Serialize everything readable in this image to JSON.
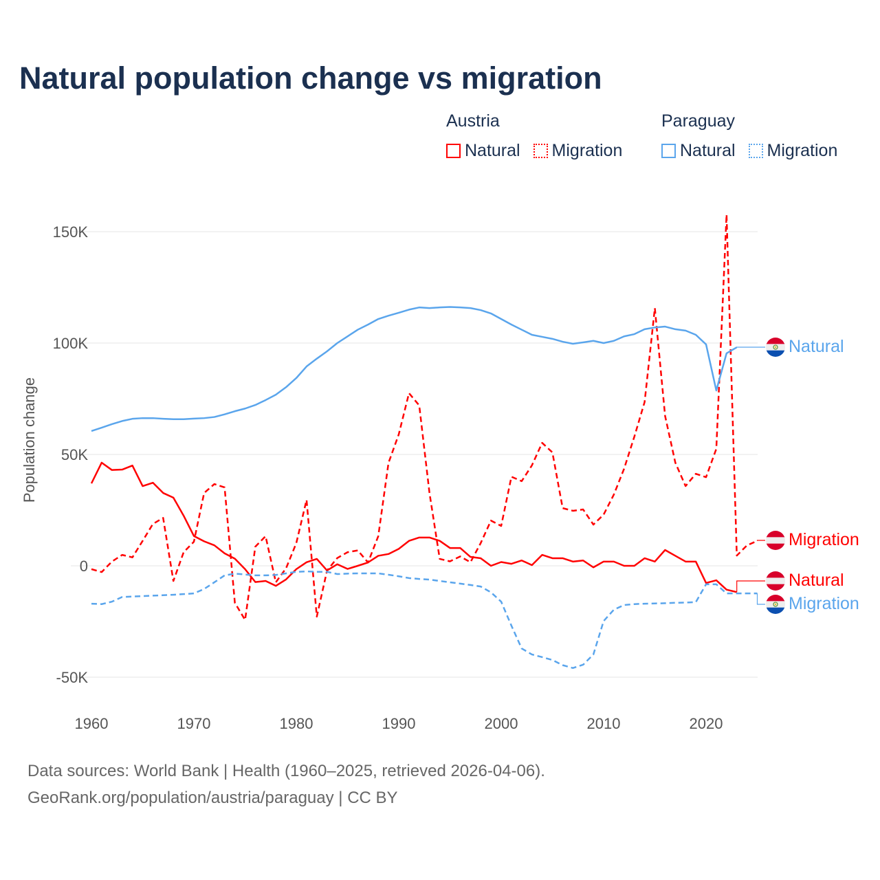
{
  "title": "Natural population change vs migration",
  "legend": {
    "groups": [
      {
        "name": "Austria",
        "items": [
          {
            "label": "Natural",
            "style": "solid",
            "color": "#ff0000"
          },
          {
            "label": "Migration",
            "style": "dotted",
            "color": "#ff0000"
          }
        ]
      },
      {
        "name": "Paraguay",
        "items": [
          {
            "label": "Natural",
            "style": "solid",
            "color": "#5aa5ec"
          },
          {
            "label": "Migration",
            "style": "dotted",
            "color": "#5aa5ec"
          }
        ]
      }
    ]
  },
  "footer": {
    "line1": "Data sources: World Bank | Health (1960–2025, retrieved 2026-04-06).",
    "line2": "GeoRank.org/population/austria/paraguay | CC BY"
  },
  "end_labels": {
    "paraguay_natural": "Natural",
    "austria_migration": "Migration",
    "austria_natural": "Natural",
    "paraguay_migration": "Migration"
  },
  "chart_data": {
    "type": "line",
    "title": "Natural population change vs migration",
    "xlabel": "",
    "ylabel": "Population change",
    "xlim": [
      1960,
      2025
    ],
    "ylim": [
      -50000,
      150000
    ],
    "grid": true,
    "x_ticks": [
      1960,
      1970,
      1980,
      1990,
      2000,
      2010,
      2020
    ],
    "x_tick_labels": [
      "1960",
      "1970",
      "1980",
      "1990",
      "2000",
      "2010",
      "2020"
    ],
    "y_ticks": [
      -50000,
      0,
      50000,
      100000,
      150000
    ],
    "y_tick_labels": [
      "-50K",
      "0",
      "50K",
      "100K",
      "150K"
    ],
    "legend_position": "top-right",
    "series": [
      {
        "name": "Austria Natural",
        "color": "#ff0000",
        "dash": false,
        "start_year": 1960,
        "values": [
          37000,
          46300,
          43000,
          43200,
          45000,
          35800,
          37300,
          32700,
          30600,
          22500,
          13400,
          11000,
          9200,
          5600,
          3200,
          -1500,
          -7300,
          -6800,
          -9000,
          -6100,
          -1500,
          1600,
          3100,
          -2100,
          700,
          -1400,
          0,
          1500,
          4500,
          5300,
          7600,
          11200,
          12700,
          12700,
          11200,
          8000,
          8000,
          4000,
          3400,
          0,
          1700,
          900,
          2400,
          300,
          4900,
          3400,
          3400,
          1900,
          2400,
          -700,
          1900,
          1900,
          0,
          0,
          3400,
          1900,
          7100,
          4500,
          1900,
          1900,
          -7700,
          -6500,
          -10700,
          -11800
        ]
      },
      {
        "name": "Austria Migration",
        "color": "#ff0000",
        "dash": true,
        "start_year": 1960,
        "values": [
          -1500,
          -2800,
          1900,
          4900,
          3800,
          11200,
          18800,
          21500,
          -6800,
          6100,
          10800,
          32700,
          36700,
          35200,
          -16600,
          -24300,
          8600,
          13300,
          -7400,
          -1100,
          10200,
          29600,
          -22800,
          -2100,
          3500,
          6100,
          6900,
          1500,
          13300,
          46200,
          59000,
          77500,
          72000,
          32700,
          3100,
          2000,
          4200,
          1600,
          10200,
          20300,
          17900,
          40000,
          38000,
          45100,
          55200,
          50900,
          25900,
          24700,
          25300,
          18500,
          23000,
          32000,
          43600,
          58000,
          73500,
          115700,
          67300,
          46300,
          35800,
          41300,
          39800,
          52500,
          157700,
          4600,
          9200,
          11200
        ]
      },
      {
        "name": "Paraguay Natural",
        "color": "#5aa5ec",
        "dash": false,
        "start_year": 1960,
        "values": [
          60500,
          62000,
          63600,
          65000,
          66000,
          66300,
          66300,
          66000,
          65800,
          65800,
          66100,
          66300,
          66800,
          68000,
          69400,
          70600,
          72200,
          74400,
          76800,
          80200,
          84300,
          89500,
          93000,
          96300,
          100000,
          103000,
          106000,
          108300,
          110800,
          112300,
          113600,
          115000,
          116000,
          115700,
          116000,
          116200,
          116000,
          115700,
          114800,
          113300,
          110800,
          108300,
          106000,
          103700,
          102800,
          101900,
          100600,
          99700,
          100300,
          101000,
          100000,
          101000,
          103000,
          104000,
          106200,
          107000,
          107400,
          106200,
          105600,
          103700,
          99400,
          78700,
          95400,
          98100
        ]
      },
      {
        "name": "Paraguay Migration",
        "color": "#5aa5ec",
        "dash": true,
        "start_year": 1960,
        "values": [
          -17000,
          -17200,
          -16100,
          -14000,
          -13800,
          -13600,
          -13400,
          -13200,
          -13000,
          -12700,
          -12400,
          -10400,
          -7400,
          -4300,
          -3500,
          -3900,
          -4300,
          -4300,
          -4100,
          -3400,
          -2700,
          -2500,
          -2700,
          -2700,
          -3700,
          -3500,
          -3400,
          -3400,
          -3400,
          -4000,
          -4700,
          -5500,
          -5900,
          -6200,
          -6800,
          -7400,
          -8000,
          -8600,
          -9300,
          -11900,
          -16100,
          -26900,
          -37100,
          -39800,
          -41000,
          -42300,
          -44600,
          -45900,
          -44400,
          -39800,
          -24800,
          -19700,
          -17600,
          -17200,
          -17000,
          -16900,
          -16800,
          -16600,
          -16500,
          -16300,
          -8300,
          -8300,
          -12400,
          -12400,
          -12400,
          -12400
        ]
      }
    ]
  }
}
